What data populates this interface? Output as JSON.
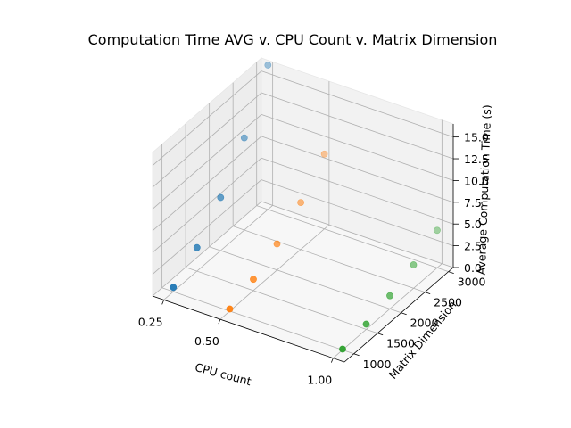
{
  "chart_data": {
    "type": "scatter",
    "projection": "3d",
    "title": "Computation Time AVG v. CPU Count v. Matrix Dimension",
    "xlabel": "CPU count",
    "ylabel": "Matrix Dimension",
    "zlabel": "Average Computation Time (s)",
    "xlim": [
      0.2,
      1.05
    ],
    "ylim": [
      800,
      3100
    ],
    "zlim": [
      0,
      16.5
    ],
    "xticks": [
      0.25,
      0.5,
      1.0
    ],
    "xtick_labels": [
      "0.25",
      "0.50",
      "1.00"
    ],
    "yticks": [
      1000,
      1500,
      2000,
      2500,
      3000
    ],
    "ytick_labels": [
      "1000",
      "1500",
      "2000",
      "2500",
      "3000"
    ],
    "zticks": [
      0,
      2.5,
      5,
      7.5,
      10,
      12.5,
      15
    ],
    "ztick_labels": [
      "0.0",
      "2.5",
      "5.0",
      "7.5",
      "10.0",
      "12.5",
      "15.0"
    ],
    "grid": true,
    "series": [
      {
        "color": "#1f77b4",
        "points": [
          {
            "x": 0.25,
            "y": 1000,
            "z": 0.5
          },
          {
            "x": 0.25,
            "y": 1500,
            "z": 2.7
          },
          {
            "x": 0.25,
            "y": 2000,
            "z": 6.1
          },
          {
            "x": 0.25,
            "y": 2500,
            "z": 10.6
          },
          {
            "x": 0.25,
            "y": 3000,
            "z": 16.6
          }
        ]
      },
      {
        "color": "#ff7f0e",
        "points": [
          {
            "x": 0.5,
            "y": 1000,
            "z": 0.25
          },
          {
            "x": 0.5,
            "y": 1500,
            "z": 1.3
          },
          {
            "x": 0.5,
            "y": 2000,
            "z": 3.0
          },
          {
            "x": 0.5,
            "y": 2500,
            "z": 5.4
          },
          {
            "x": 0.5,
            "y": 3000,
            "z": 8.6
          }
        ]
      },
      {
        "color": "#2ca02c",
        "points": [
          {
            "x": 1.0,
            "y": 1000,
            "z": 0.1
          },
          {
            "x": 1.0,
            "y": 1500,
            "z": 0.6
          },
          {
            "x": 1.0,
            "y": 2000,
            "z": 1.5
          },
          {
            "x": 1.0,
            "y": 2500,
            "z": 2.7
          },
          {
            "x": 1.0,
            "y": 3000,
            "z": 4.3
          }
        ]
      }
    ]
  }
}
